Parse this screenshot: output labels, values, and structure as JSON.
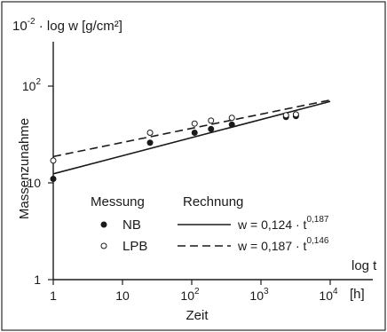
{
  "chart_data": {
    "type": "line",
    "title": "",
    "ylabel_top": {
      "base": "10",
      "exp": "-2",
      "rest": " · log w  [g/cm²]"
    },
    "ylabel_side": "Massenzunahme",
    "xlabel": "Zeit",
    "x_axis_label": "log t",
    "x_unit": "[h]",
    "x_scale": "log",
    "y_scale": "log",
    "xlim": [
      1,
      10000
    ],
    "ylim": [
      1,
      200
    ],
    "x_ticks": [
      {
        "value": 1,
        "base": "1",
        "exp": ""
      },
      {
        "value": 10,
        "base": "10",
        "exp": ""
      },
      {
        "value": 100,
        "base": "10",
        "exp": "2"
      },
      {
        "value": 1000,
        "base": "10",
        "exp": "3"
      },
      {
        "value": 10000,
        "base": "10",
        "exp": "4"
      }
    ],
    "y_ticks": [
      {
        "value": 1,
        "base": "1",
        "exp": ""
      },
      {
        "value": 10,
        "base": "10",
        "exp": ""
      },
      {
        "value": 100,
        "base": "10",
        "exp": "2"
      }
    ],
    "legend": {
      "header_measure": "Messung",
      "header_calc": "Rechnung",
      "entries": [
        {
          "name": "NB",
          "marker": "filled",
          "style": "solid",
          "eq_prefix": "w = 0,124 · t",
          "eq_exp": "0,187"
        },
        {
          "name": "LPB",
          "marker": "open",
          "style": "dashed",
          "eq_prefix": "w = 0,187 · t",
          "eq_exp": "0,146"
        }
      ]
    },
    "series": [
      {
        "name": "NB",
        "marker": "filled",
        "style": "solid",
        "x": [
          1,
          25,
          110,
          190,
          380,
          2300,
          3200
        ],
        "y": [
          11,
          26,
          33,
          36,
          40,
          48,
          49
        ]
      },
      {
        "name": "LPB",
        "marker": "open",
        "style": "dashed",
        "x": [
          1,
          25,
          110,
          190,
          380,
          2300,
          3200
        ],
        "y": [
          17,
          33,
          41,
          44,
          47,
          50,
          51
        ]
      }
    ],
    "fits": [
      {
        "name": "NB",
        "a": 12.4,
        "b": 0.187,
        "x_range": [
          1,
          10000
        ],
        "style": "solid"
      },
      {
        "name": "LPB",
        "a": 18.7,
        "b": 0.146,
        "x_range": [
          1,
          10000
        ],
        "style": "dashed"
      }
    ],
    "grid": false
  }
}
